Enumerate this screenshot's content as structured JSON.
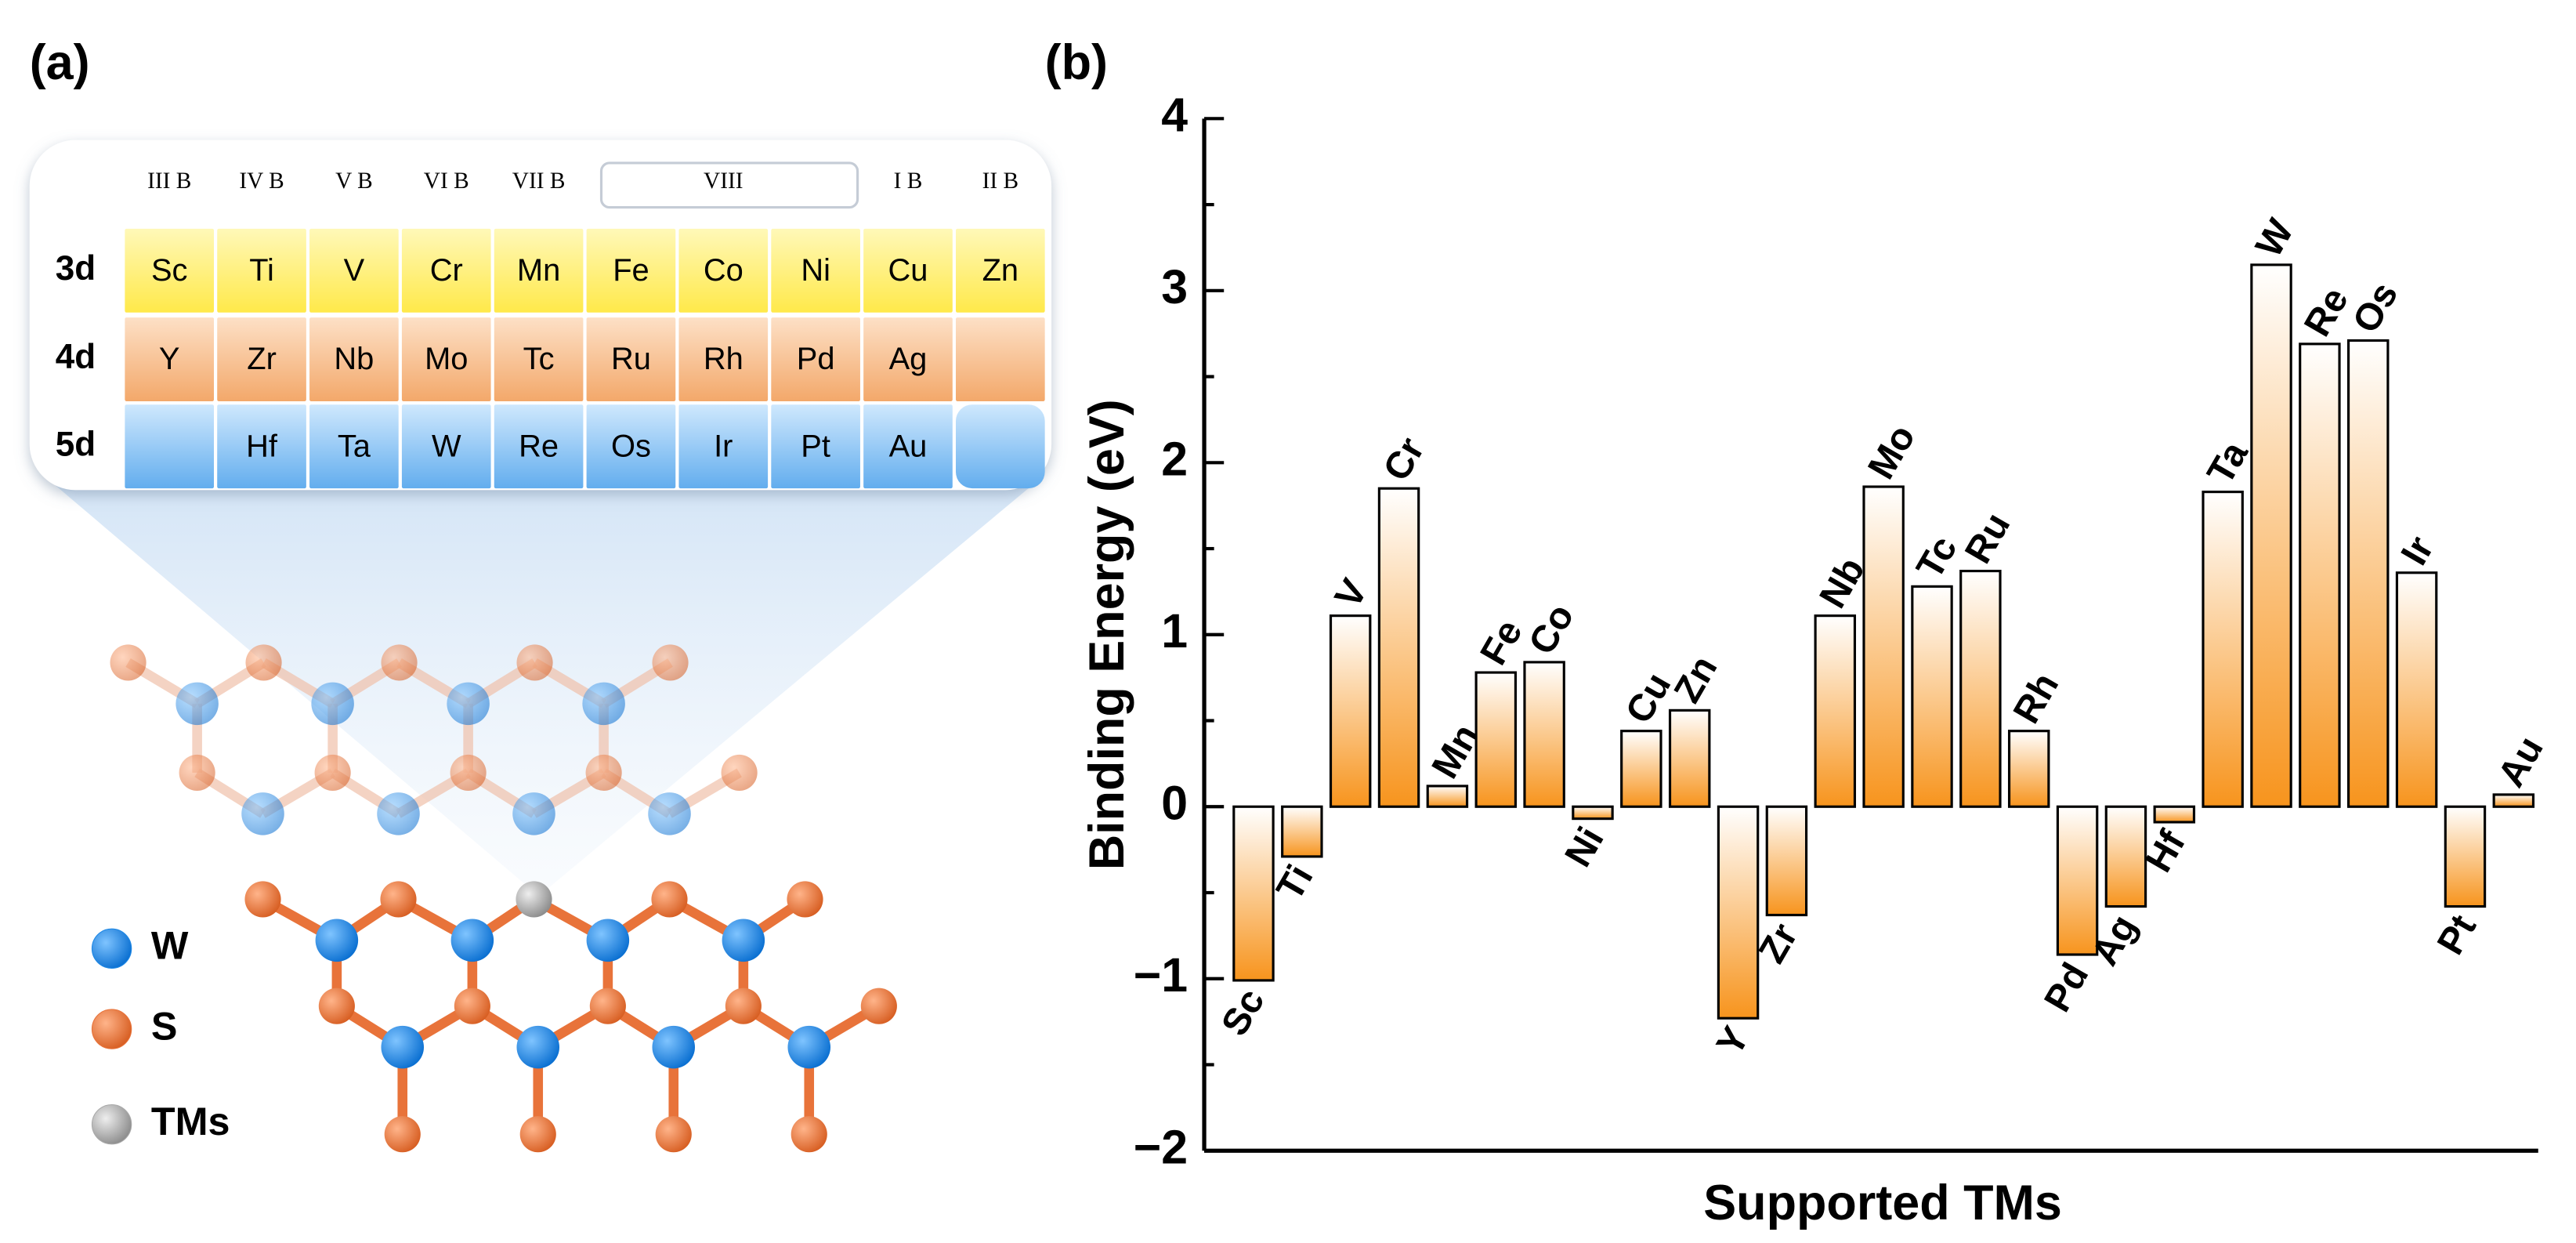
{
  "panel_a": {
    "label": "(a)",
    "groups": [
      "III B",
      "IV B",
      "V B",
      "VI B",
      "VII B",
      "VIII",
      "I B",
      "II B"
    ],
    "periods": [
      "3d",
      "4d",
      "5d"
    ],
    "rows": [
      [
        "Sc",
        "Ti",
        "V",
        "Cr",
        "Mn",
        "Fe",
        "Co",
        "Ni",
        "Cu",
        "Zn"
      ],
      [
        "Y",
        "Zr",
        "Nb",
        "Mo",
        "Tc",
        "Ru",
        "Rh",
        "Pd",
        "Ag",
        null
      ],
      [
        null,
        "Hf",
        "Ta",
        "W",
        "Re",
        "Os",
        "Ir",
        "Pt",
        "Au",
        null
      ]
    ],
    "legend": [
      {
        "name": "W",
        "color": "#1e88e5"
      },
      {
        "name": "S",
        "color": "#e8733a"
      },
      {
        "name": "TMs",
        "color": "#a9a9a9"
      }
    ]
  },
  "chart_data": {
    "type": "bar",
    "panel_label": "(b)",
    "y_label": "Binding Energy (eV)",
    "x_label": "Supported TMs",
    "categories": [
      "Sc",
      "Ti",
      "V",
      "Cr",
      "Mn",
      "Fe",
      "Co",
      "Ni",
      "Cu",
      "Zn",
      "Y",
      "Zr",
      "Nb",
      "Mo",
      "Tc",
      "Ru",
      "Rh",
      "Pd",
      "Ag",
      "Hf",
      "Ta",
      "W",
      "Re",
      "Os",
      "Ir",
      "Pt",
      "Au"
    ],
    "values": [
      -1.01,
      -0.29,
      1.11,
      1.85,
      0.12,
      0.78,
      0.84,
      -0.07,
      0.44,
      0.56,
      -1.23,
      -0.63,
      1.11,
      1.86,
      1.28,
      1.37,
      0.44,
      -0.86,
      -0.58,
      -0.09,
      1.83,
      3.15,
      2.69,
      2.71,
      1.36,
      -0.58,
      0.07
    ],
    "color": "#f7941d",
    "ylim": [
      -2,
      4
    ],
    "yticks": [
      {
        "value": -2,
        "label": "−2"
      },
      {
        "value": -1,
        "label": "−1"
      },
      0,
      1,
      2,
      3,
      4
    ],
    "yminorticks": [
      -1.5,
      -0.5,
      0.5,
      1.5,
      2.5,
      3.5
    ]
  }
}
